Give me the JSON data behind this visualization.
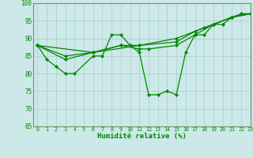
{
  "xlabel": "Humidité relative (%)",
  "xlim": [
    -0.5,
    23
  ],
  "ylim": [
    65,
    100
  ],
  "yticks": [
    65,
    70,
    75,
    80,
    85,
    90,
    95,
    100
  ],
  "xticks": [
    0,
    1,
    2,
    3,
    4,
    5,
    6,
    7,
    8,
    9,
    10,
    11,
    12,
    13,
    14,
    15,
    16,
    17,
    18,
    19,
    20,
    21,
    22,
    23
  ],
  "bg_color": "#cce8e8",
  "grid_color": "#aacccc",
  "line_color": "#008800",
  "spine_color": "#669966",
  "line1": [
    [
      0,
      88
    ],
    [
      1,
      84
    ],
    [
      2,
      82
    ],
    [
      3,
      80
    ],
    [
      4,
      80
    ],
    [
      6,
      85
    ],
    [
      7,
      85
    ],
    [
      8,
      91
    ],
    [
      9,
      91
    ],
    [
      10,
      88
    ],
    [
      11,
      86
    ],
    [
      12,
      74
    ],
    [
      13,
      74
    ],
    [
      14,
      75
    ],
    [
      15,
      74
    ],
    [
      16,
      86
    ],
    [
      17,
      91
    ],
    [
      18,
      91
    ],
    [
      19,
      94
    ],
    [
      20,
      94
    ],
    [
      21,
      96
    ],
    [
      22,
      97
    ],
    [
      23,
      97
    ]
  ],
  "line2": [
    [
      0,
      88
    ],
    [
      3,
      84
    ],
    [
      6,
      86
    ],
    [
      9,
      88
    ],
    [
      11,
      87
    ],
    [
      12,
      87
    ],
    [
      15,
      88
    ],
    [
      17,
      91
    ],
    [
      19,
      94
    ],
    [
      21,
      96
    ],
    [
      23,
      97
    ]
  ],
  "line3": [
    [
      0,
      88
    ],
    [
      3,
      85
    ],
    [
      6,
      86
    ],
    [
      9,
      88
    ],
    [
      11,
      88
    ],
    [
      15,
      89
    ],
    [
      17,
      92
    ],
    [
      19,
      94
    ],
    [
      21,
      96
    ],
    [
      23,
      97
    ]
  ],
  "line4": [
    [
      0,
      88
    ],
    [
      6,
      86
    ],
    [
      11,
      88
    ],
    [
      15,
      90
    ],
    [
      18,
      93
    ],
    [
      21,
      96
    ],
    [
      23,
      97
    ]
  ]
}
